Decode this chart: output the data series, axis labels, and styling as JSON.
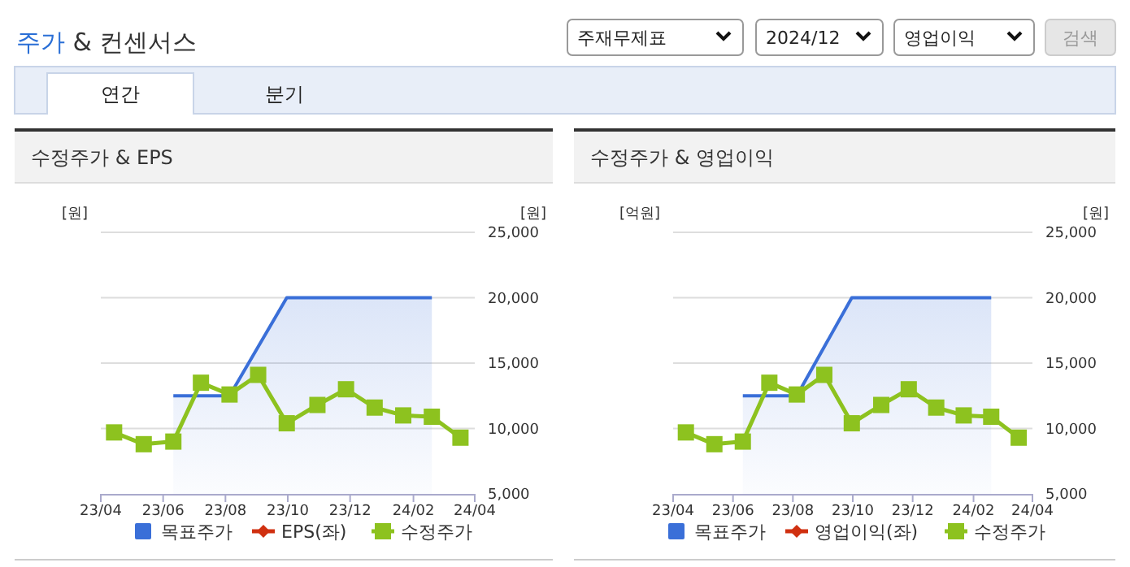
{
  "chart_data": [
    {
      "type": "other",
      "title": "주가 & 컨센서스",
      "annotations": [
        "주재무제표",
        "2024/12",
        "영업이익",
        "검색",
        "연간",
        "분기"
      ]
    },
    {
      "type": "line",
      "title": "수정주가 & EPS",
      "ylabel": "[원]",
      "y2label": "[원]",
      "xlim": [
        "2023-04-01",
        "2024-04-01"
      ],
      "xticks": [
        {
          "value": "2023-04-01",
          "label": "23/04"
        },
        {
          "value": "2023-06-01",
          "label": "23/06"
        },
        {
          "value": "2023-08-01",
          "label": "23/08"
        },
        {
          "value": "2023-10-01",
          "label": "23/10"
        },
        {
          "value": "2023-12-01",
          "label": "23/12"
        },
        {
          "value": "2024-02-01",
          "label": "24/02"
        },
        {
          "value": "2024-04-01",
          "label": "24/04"
        }
      ],
      "y2lim": [
        5000,
        25000
      ],
      "y2ticks": [
        {
          "value": 5000,
          "label": "5,000"
        },
        {
          "value": 10000,
          "label": "10,000"
        },
        {
          "value": 15000,
          "label": "15,000"
        },
        {
          "value": 20000,
          "label": "20,000"
        },
        {
          "value": 25000,
          "label": "25,000"
        }
      ],
      "grid": true,
      "legend": "bottom",
      "series": [
        {
          "name": "목표주가",
          "type": "area",
          "color": "#3a6fd8",
          "axis": "y2",
          "x": [
            "2023-06-11",
            "2023-07-08",
            "2023-08-05",
            "2023-09-30",
            "2023-10-30",
            "2023-11-27",
            "2023-12-25",
            "2024-01-22",
            "2024-02-19"
          ],
          "values": [
            12500,
            12500,
            12500,
            20000,
            20000,
            20000,
            20000,
            20000,
            20000
          ]
        },
        {
          "name": "EPS(좌)",
          "type": "line",
          "color": "#d03010",
          "marker": "diamond"
        },
        {
          "name": "수정주가",
          "type": "line",
          "color": "#8dc21f",
          "axis": "y2",
          "marker": "square",
          "x": [
            "2023-04-14",
            "2023-05-13",
            "2023-06-11",
            "2023-07-08",
            "2023-08-05",
            "2023-09-02",
            "2023-09-30",
            "2023-10-30",
            "2023-11-27",
            "2023-12-25",
            "2024-01-22",
            "2024-02-19",
            "2024-03-18"
          ],
          "values": [
            9700,
            8800,
            9000,
            13500,
            12600,
            14100,
            10400,
            11800,
            13000,
            11600,
            11000,
            10900,
            9300
          ]
        }
      ]
    },
    {
      "type": "line",
      "title": "수정주가 & 영업이익",
      "ylabel": "[억원]",
      "y2label": "[원]",
      "xlim": [
        "2023-04-01",
        "2024-04-01"
      ],
      "xticks": [
        {
          "value": "2023-04-01",
          "label": "23/04"
        },
        {
          "value": "2023-06-01",
          "label": "23/06"
        },
        {
          "value": "2023-08-01",
          "label": "23/08"
        },
        {
          "value": "2023-10-01",
          "label": "23/10"
        },
        {
          "value": "2023-12-01",
          "label": "23/12"
        },
        {
          "value": "2024-02-01",
          "label": "24/02"
        },
        {
          "value": "2024-04-01",
          "label": "24/04"
        }
      ],
      "y2lim": [
        5000,
        25000
      ],
      "y2ticks": [
        {
          "value": 5000,
          "label": "5,000"
        },
        {
          "value": 10000,
          "label": "10,000"
        },
        {
          "value": 15000,
          "label": "15,000"
        },
        {
          "value": 20000,
          "label": "20,000"
        },
        {
          "value": 25000,
          "label": "25,000"
        }
      ],
      "grid": true,
      "legend": "bottom",
      "series": [
        {
          "name": "목표주가",
          "type": "area",
          "color": "#3a6fd8",
          "axis": "y2",
          "x": [
            "2023-06-11",
            "2023-07-08",
            "2023-08-05",
            "2023-09-30",
            "2023-10-30",
            "2023-11-27",
            "2023-12-25",
            "2024-01-22",
            "2024-02-19"
          ],
          "values": [
            12500,
            12500,
            12500,
            20000,
            20000,
            20000,
            20000,
            20000,
            20000
          ]
        },
        {
          "name": "영업이익(좌)",
          "type": "line",
          "color": "#d03010",
          "marker": "diamond"
        },
        {
          "name": "수정주가",
          "type": "line",
          "color": "#8dc21f",
          "axis": "y2",
          "marker": "square",
          "x": [
            "2023-04-14",
            "2023-05-13",
            "2023-06-11",
            "2023-07-08",
            "2023-08-05",
            "2023-09-02",
            "2023-09-30",
            "2023-10-30",
            "2023-11-27",
            "2023-12-25",
            "2024-01-22",
            "2024-02-19",
            "2024-03-18"
          ],
          "values": [
            9700,
            8800,
            9000,
            13500,
            12600,
            14100,
            10400,
            11800,
            13000,
            11600,
            11000,
            10900,
            9300
          ]
        }
      ]
    }
  ]
}
